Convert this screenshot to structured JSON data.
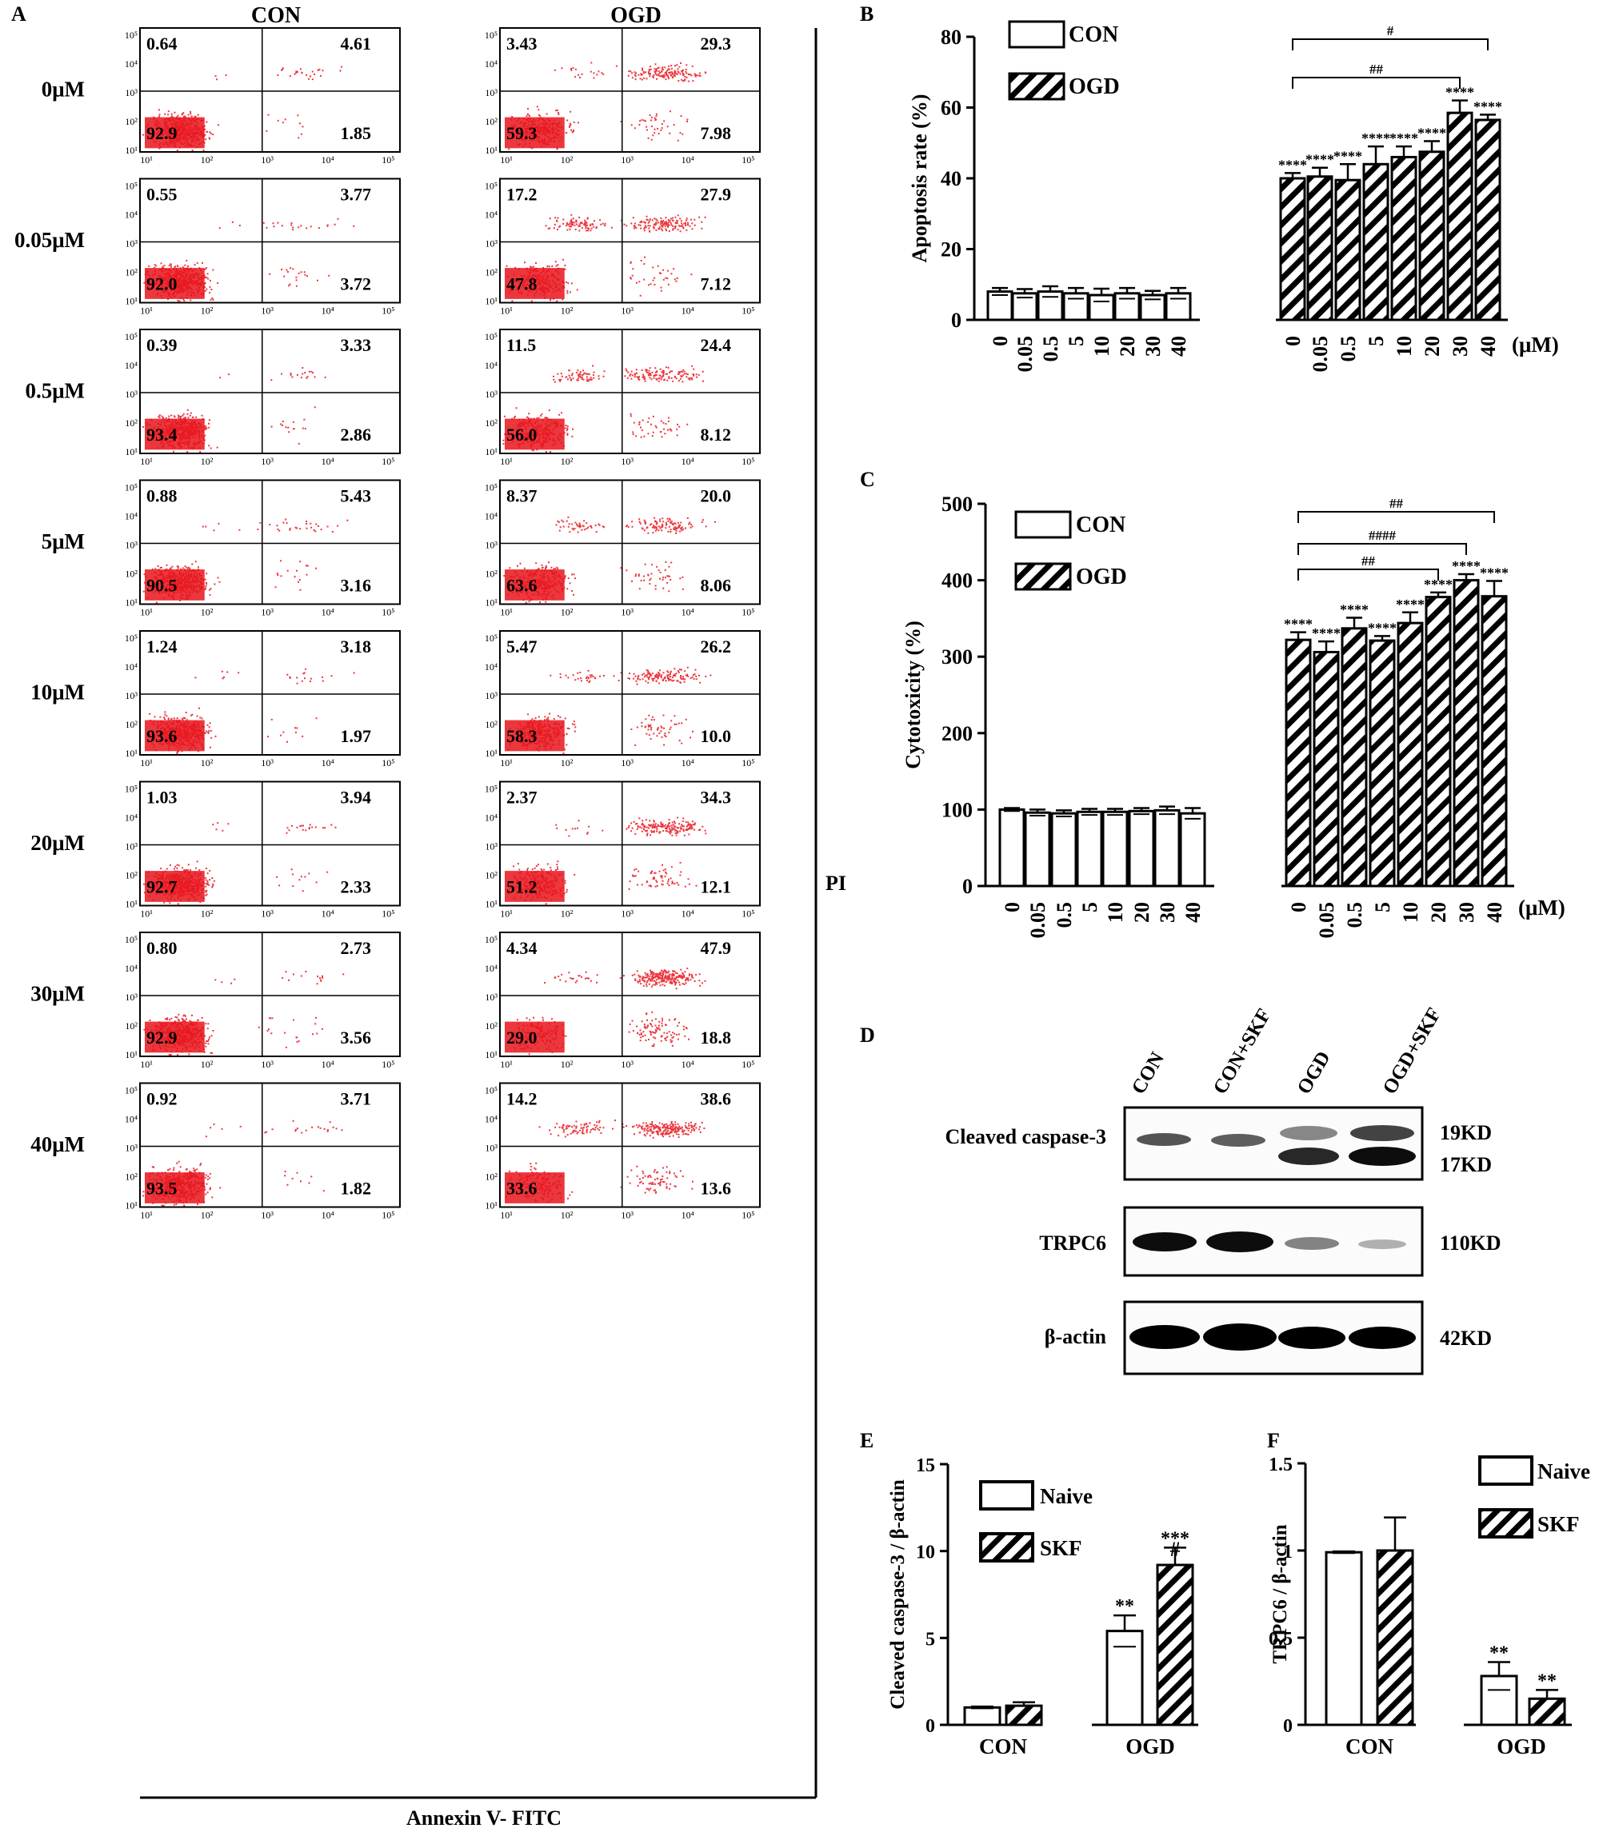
{
  "chart_data": [
    {
      "panel": "A",
      "type": "scatter",
      "subtype": "flow-cytometry-quadrants",
      "column_titles": [
        "CON",
        "OGD"
      ],
      "row_labels": [
        "0μM",
        "0.05μM",
        "0.5μM",
        "5μM",
        "10μM",
        "20μM",
        "30μM",
        "40μM"
      ],
      "xlabel": "Annexin V- FITC",
      "ylabel": "PI",
      "ticks": [
        "10¹",
        "10²",
        "10³",
        "10⁴",
        "10⁵"
      ],
      "quadrants": {
        "CON": [
          [
            "0.64",
            "4.61",
            "92.9",
            "1.85"
          ],
          [
            "0.55",
            "3.77",
            "92.0",
            "3.72"
          ],
          [
            "0.39",
            "3.33",
            "93.4",
            "2.86"
          ],
          [
            "0.88",
            "5.43",
            "90.5",
            "3.16"
          ],
          [
            "1.24",
            "3.18",
            "93.6",
            "1.97"
          ],
          [
            "1.03",
            "3.94",
            "92.7",
            "2.33"
          ],
          [
            "0.80",
            "2.73",
            "92.9",
            "3.56"
          ],
          [
            "0.92",
            "3.71",
            "93.5",
            "1.82"
          ]
        ],
        "OGD": [
          [
            "3.43",
            "29.3",
            "59.3",
            "7.98"
          ],
          [
            "17.2",
            "27.9",
            "47.8",
            "7.12"
          ],
          [
            "11.5",
            "24.4",
            "56.0",
            "8.12"
          ],
          [
            "8.37",
            "20.0",
            "63.6",
            "8.06"
          ],
          [
            "5.47",
            "26.2",
            "58.3",
            "10.0"
          ],
          [
            "2.37",
            "34.3",
            "51.2",
            "12.1"
          ],
          [
            "4.34",
            "47.9",
            "29.0",
            "18.8"
          ],
          [
            "14.2",
            "38.6",
            "33.6",
            "13.6"
          ]
        ]
      },
      "dot_color": "#e8141c"
    },
    {
      "panel": "B",
      "type": "bar",
      "ylabel": "Apoptosis rate (%)",
      "ylim": [
        0,
        80
      ],
      "yticks": [
        "0",
        "20",
        "40",
        "60",
        "80"
      ],
      "categories": [
        "0",
        "0.05",
        "0.5",
        "5",
        "10",
        "20",
        "30",
        "40"
      ],
      "unit_label": "(μM)",
      "series": [
        {
          "name": "CON",
          "values": [
            8,
            7.5,
            8,
            7.5,
            7,
            7.5,
            7,
            7.5
          ],
          "errors": [
            1,
            1.2,
            1.5,
            1.5,
            1.8,
            1.5,
            1.2,
            1.5
          ],
          "stars": [
            "",
            "",
            "",
            "",
            "",
            "",
            "",
            ""
          ]
        },
        {
          "name": "OGD",
          "values": [
            40,
            40.5,
            39.5,
            44,
            46,
            47.5,
            58.5,
            56.5
          ],
          "errors": [
            1.5,
            2.5,
            4.5,
            5,
            3,
            3,
            3.5,
            1.5
          ],
          "stars": [
            "****",
            "****",
            "****",
            "****",
            "****",
            "****",
            "****",
            "****"
          ]
        }
      ],
      "brackets": [
        {
          "from": "0",
          "to": "40",
          "label": "#"
        },
        {
          "from": "0",
          "to": "30",
          "label": "##"
        }
      ]
    },
    {
      "panel": "C",
      "type": "bar",
      "ylabel": "Cytotoxicity (%)",
      "ylim": [
        0,
        500
      ],
      "yticks": [
        "0",
        "100",
        "200",
        "300",
        "400",
        "500"
      ],
      "categories": [
        "0",
        "0.05",
        "0.5",
        "5",
        "10",
        "20",
        "30",
        "40"
      ],
      "unit_label": "(μM)",
      "series": [
        {
          "name": "CON",
          "values": [
            100,
            96,
            95,
            97,
            97,
            98,
            99,
            95
          ],
          "errors": [
            2,
            4,
            4,
            4,
            4,
            4,
            5,
            7
          ],
          "stars": [
            "",
            "",
            "",
            "",
            "",
            "",
            "",
            ""
          ]
        },
        {
          "name": "OGD",
          "values": [
            322,
            306,
            337,
            321,
            344,
            378,
            400,
            379
          ],
          "errors": [
            10,
            14,
            14,
            6,
            14,
            6,
            8,
            20
          ],
          "stars": [
            "****",
            "****",
            "****",
            "****",
            "****",
            "****",
            "****",
            "****"
          ]
        }
      ],
      "brackets": [
        {
          "from": "0",
          "to": "40",
          "label": "##"
        },
        {
          "from": "0",
          "to": "30",
          "label": "####"
        },
        {
          "from": "0",
          "to": "20",
          "label": "##"
        }
      ]
    },
    {
      "panel": "D",
      "type": "table",
      "subtype": "western-blot",
      "lanes": [
        "CON",
        "CON+SKF",
        "OGD",
        "OGD+SKF"
      ],
      "blots": [
        {
          "label": "Cleaved caspase-3",
          "sizes": [
            "19KD",
            "17KD"
          ]
        },
        {
          "label": "TRPC6",
          "sizes": [
            "110KD"
          ]
        },
        {
          "label": "β-actin",
          "sizes": [
            "42KD"
          ]
        }
      ]
    },
    {
      "panel": "E",
      "type": "bar",
      "ylabel": "Cleaved caspase-3 / β-actin",
      "ylim": [
        0,
        15
      ],
      "yticks": [
        "0",
        "5",
        "10",
        "15"
      ],
      "categories": [
        "CON",
        "OGD"
      ],
      "series": [
        {
          "name": "Naive",
          "values": [
            1.0,
            5.4
          ],
          "errors": [
            0.05,
            0.9
          ],
          "stars": [
            "",
            "**"
          ]
        },
        {
          "name": "SKF",
          "values": [
            1.1,
            9.2
          ],
          "errors": [
            0.2,
            1.0
          ],
          "stars": [
            "",
            "***"
          ]
        }
      ],
      "extra_marks": [
        "",
        "#"
      ]
    },
    {
      "panel": "F",
      "type": "bar",
      "ylabel": "TRPC6 / β-actin",
      "ylim": [
        0,
        1.5
      ],
      "yticks": [
        "0",
        "0.5",
        "1",
        "1.5"
      ],
      "categories": [
        "CON",
        "OGD"
      ],
      "series": [
        {
          "name": "Naive",
          "values": [
            0.99,
            0.28
          ],
          "errors": [
            0.005,
            0.08
          ],
          "stars": [
            "",
            "**"
          ]
        },
        {
          "name": "SKF",
          "values": [
            1.0,
            0.15
          ],
          "errors": [
            0.19,
            0.05
          ],
          "stars": [
            "",
            "**"
          ]
        }
      ]
    }
  ],
  "panel_letters": [
    "A",
    "B",
    "C",
    "D",
    "E",
    "F"
  ]
}
